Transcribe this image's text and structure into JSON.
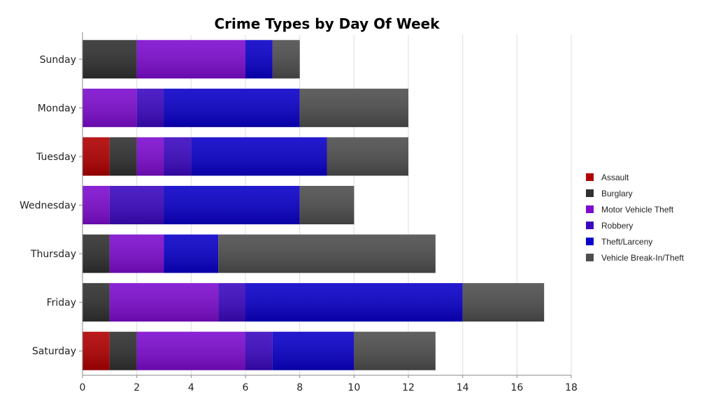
{
  "chart_data": {
    "type": "bar",
    "orientation": "horizontal",
    "stacked": true,
    "title": "Crime Types by Day Of Week",
    "xlabel": "",
    "ylabel": "",
    "xlim": [
      0,
      18
    ],
    "xticks": [
      0,
      2,
      4,
      6,
      8,
      10,
      12,
      14,
      16,
      18
    ],
    "grid": "vertical",
    "legend_placement": "right",
    "categories": [
      "Sunday",
      "Monday",
      "Tuesday",
      "Wednesday",
      "Thursday",
      "Friday",
      "Saturday"
    ],
    "series": [
      {
        "name": "Assault",
        "color": "#b00000",
        "values": [
          0,
          0,
          1,
          0,
          0,
          0,
          1
        ]
      },
      {
        "name": "Burglary",
        "color": "#303030",
        "values": [
          2,
          0,
          1,
          0,
          1,
          1,
          1
        ]
      },
      {
        "name": "Motor Vehicle Theft",
        "color": "#7d0ccf",
        "values": [
          4,
          2,
          1,
          1,
          2,
          4,
          4
        ]
      },
      {
        "name": "Robbery",
        "color": "#3b08c0",
        "values": [
          0,
          1,
          1,
          2,
          0,
          1,
          1
        ]
      },
      {
        "name": "Theft/Larceny",
        "color": "#0a00c8",
        "values": [
          1,
          5,
          5,
          5,
          2,
          8,
          3
        ]
      },
      {
        "name": "Vehicle Break-In/Theft",
        "color": "#4e4e4e",
        "values": [
          1,
          4,
          3,
          2,
          8,
          3,
          3
        ]
      }
    ]
  }
}
